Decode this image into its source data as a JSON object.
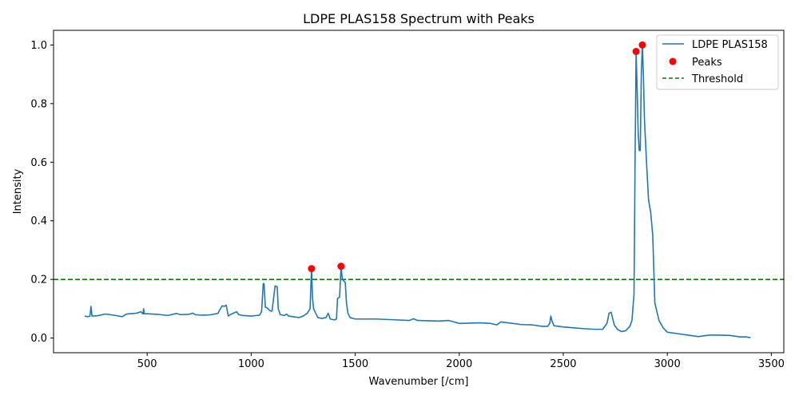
{
  "chart_data": {
    "type": "line",
    "title": "LDPE PLAS158 Spectrum with Peaks",
    "xlabel": "Wavenumber [/cm]",
    "ylabel": "Intensity",
    "xlim": [
      50,
      3560
    ],
    "ylim": [
      -0.05,
      1.05
    ],
    "xticks": [
      500,
      1000,
      1500,
      2000,
      2500,
      3000,
      3500
    ],
    "yticks": [
      0.0,
      0.2,
      0.4,
      0.6,
      0.8,
      1.0
    ],
    "xtick_labels": [
      "500",
      "1000",
      "1500",
      "2000",
      "2500",
      "3000",
      "3500"
    ],
    "ytick_labels": [
      "0.0",
      "0.2",
      "0.4",
      "0.6",
      "0.8",
      "1.0"
    ],
    "grid": false,
    "legend_position": "top-right",
    "legend": [
      {
        "label": "LDPE PLAS158",
        "kind": "line"
      },
      {
        "label": "Peaks",
        "kind": "marker"
      },
      {
        "label": "Threshold",
        "kind": "dashed-line"
      }
    ],
    "colors": {
      "spectrum": "#1f77b4",
      "peaks": "#ff0000",
      "threshold": "#008000"
    },
    "series": [
      {
        "name": "LDPE PLAS158",
        "x": [
          200,
          215,
          225,
          230,
          235,
          260,
          300,
          340,
          380,
          400,
          450,
          470,
          480,
          483,
          486,
          500,
          550,
          600,
          640,
          660,
          700,
          720,
          730,
          760,
          800,
          840,
          860,
          870,
          880,
          890,
          900,
          930,
          940,
          960,
          1000,
          1040,
          1050,
          1058,
          1062,
          1068,
          1075,
          1090,
          1100,
          1115,
          1125,
          1130,
          1140,
          1160,
          1170,
          1180,
          1200,
          1230,
          1250,
          1270,
          1283,
          1290,
          1295,
          1300,
          1310,
          1320,
          1340,
          1360,
          1370,
          1380,
          1400,
          1410,
          1415,
          1425,
          1432,
          1438,
          1445,
          1452,
          1458,
          1465,
          1475,
          1500,
          1600,
          1700,
          1760,
          1780,
          1800,
          1900,
          1950,
          2000,
          2100,
          2150,
          2180,
          2200,
          2300,
          2350,
          2400,
          2425,
          2435,
          2440,
          2445,
          2455,
          2500,
          2550,
          2600,
          2650,
          2690,
          2710,
          2720,
          2730,
          2745,
          2760,
          2780,
          2800,
          2820,
          2830,
          2840,
          2845,
          2850,
          2855,
          2860,
          2865,
          2870,
          2875,
          2880,
          2885,
          2890,
          2900,
          2910,
          2920,
          2930,
          2940,
          2950,
          2960,
          2980,
          3000,
          3050,
          3100,
          3150,
          3200,
          3250,
          3300,
          3350,
          3380,
          3400
        ],
        "values": [
          0.075,
          0.073,
          0.075,
          0.108,
          0.075,
          0.076,
          0.082,
          0.078,
          0.073,
          0.082,
          0.085,
          0.09,
          0.082,
          0.1,
          0.083,
          0.083,
          0.081,
          0.077,
          0.084,
          0.08,
          0.081,
          0.085,
          0.08,
          0.078,
          0.079,
          0.084,
          0.11,
          0.108,
          0.112,
          0.075,
          0.08,
          0.09,
          0.08,
          0.077,
          0.075,
          0.078,
          0.09,
          0.186,
          0.185,
          0.105,
          0.104,
          0.093,
          0.092,
          0.178,
          0.175,
          0.1,
          0.08,
          0.077,
          0.082,
          0.075,
          0.073,
          0.07,
          0.075,
          0.085,
          0.1,
          0.237,
          0.135,
          0.1,
          0.085,
          0.07,
          0.067,
          0.07,
          0.085,
          0.065,
          0.062,
          0.065,
          0.135,
          0.14,
          0.245,
          0.2,
          0.195,
          0.19,
          0.12,
          0.085,
          0.07,
          0.065,
          0.065,
          0.062,
          0.06,
          0.066,
          0.06,
          0.058,
          0.06,
          0.05,
          0.052,
          0.05,
          0.045,
          0.055,
          0.046,
          0.045,
          0.04,
          0.04,
          0.05,
          0.075,
          0.06,
          0.042,
          0.038,
          0.035,
          0.032,
          0.03,
          0.03,
          0.05,
          0.085,
          0.088,
          0.045,
          0.03,
          0.022,
          0.025,
          0.04,
          0.06,
          0.15,
          0.6,
          0.978,
          0.85,
          0.7,
          0.64,
          0.64,
          0.9,
          1.0,
          0.9,
          0.75,
          0.6,
          0.47,
          0.43,
          0.35,
          0.12,
          0.09,
          0.06,
          0.035,
          0.02,
          0.015,
          0.01,
          0.005,
          0.01,
          0.01,
          0.009,
          0.004,
          0.004,
          0.001
        ],
        "peaks": {
          "x": [
            1290,
            1432,
            2850,
            2880
          ],
          "y": [
            0.237,
            0.245,
            0.978,
            1.0
          ]
        }
      }
    ],
    "threshold": {
      "name": "Threshold",
      "value": 0.2
    }
  }
}
